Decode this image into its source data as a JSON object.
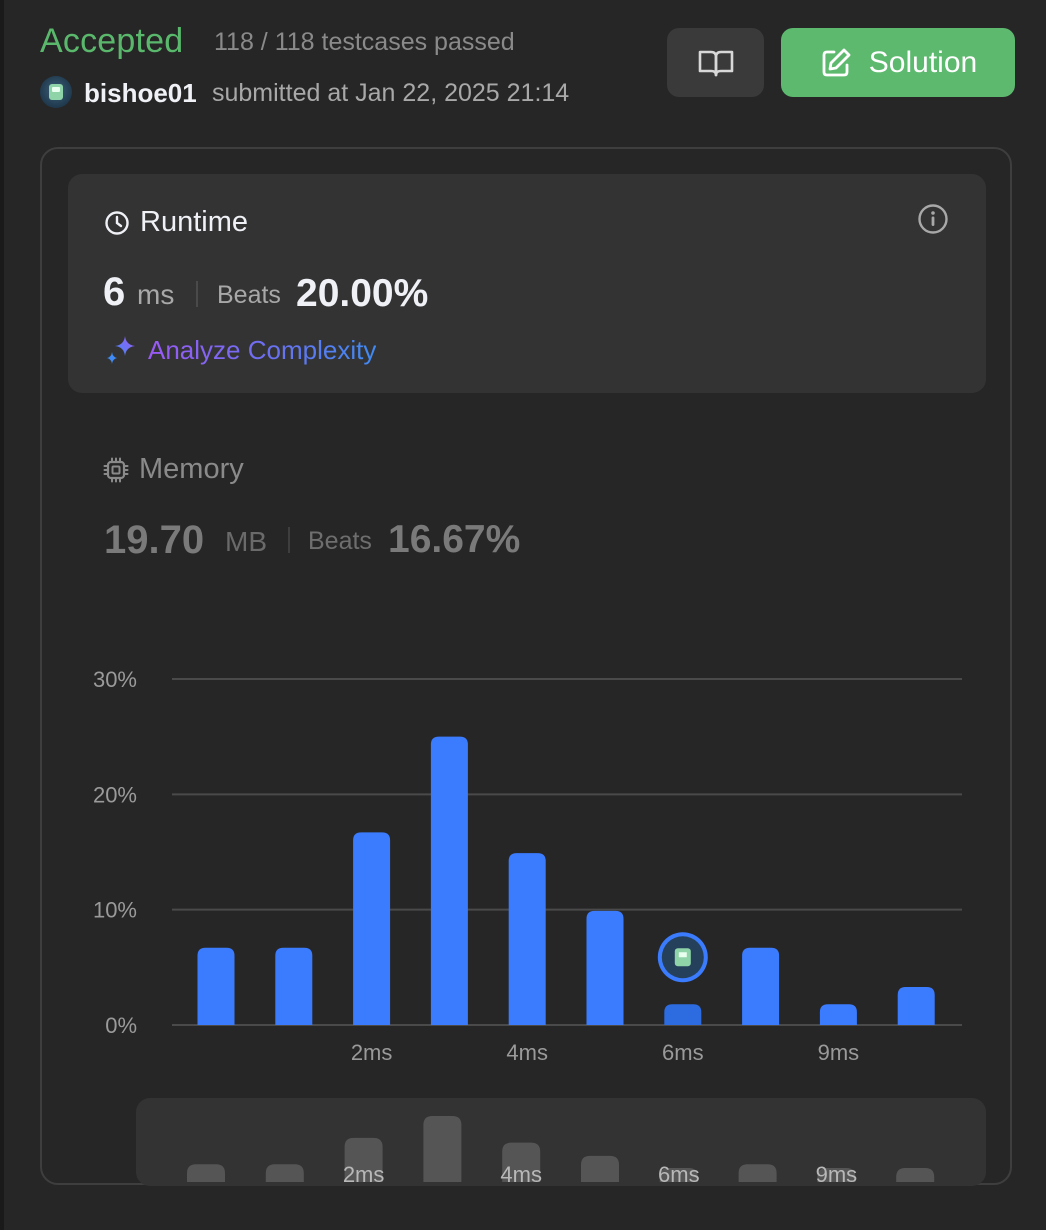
{
  "header": {
    "status": "Accepted",
    "testcases": "118 / 118 testcases passed",
    "username": "bishoe01",
    "submitted": "submitted at Jan 22, 2025 21:14",
    "book_icon": "book-open-icon",
    "solution_label": "Solution",
    "solution_icon": "edit-icon",
    "accent_green": "#5cb96e"
  },
  "runtime": {
    "title": "Runtime",
    "icon": "clock-icon",
    "value": "6",
    "unit": "ms",
    "beats_label": "Beats",
    "beats_value": "20.00%",
    "analyze_label": "Analyze Complexity",
    "analyze_icon": "sparkle-icon",
    "info_icon": "info-icon"
  },
  "memory": {
    "title": "Memory",
    "icon": "chip-icon",
    "value": "19.70",
    "unit": "MB",
    "beats_label": "Beats",
    "beats_value": "16.67%"
  },
  "chart_data": {
    "type": "bar",
    "y_ticks": [
      "0%",
      "10%",
      "20%",
      "30%"
    ],
    "ylim": [
      0,
      30
    ],
    "x_labels": [
      {
        "index": 2,
        "label": "2ms"
      },
      {
        "index": 4,
        "label": "4ms"
      },
      {
        "index": 6,
        "label": "6ms"
      },
      {
        "index": 8,
        "label": "9ms"
      }
    ],
    "values": [
      6.7,
      6.7,
      16.7,
      25.0,
      14.9,
      9.9,
      1.8,
      6.7,
      1.8,
      3.3
    ],
    "highlight_index": 6,
    "bar_color": "#3b7cff",
    "highlight_color": "#2c6be0",
    "grid": true
  },
  "minimap": {
    "labels": [
      "2ms",
      "4ms",
      "6ms",
      "9ms"
    ]
  }
}
